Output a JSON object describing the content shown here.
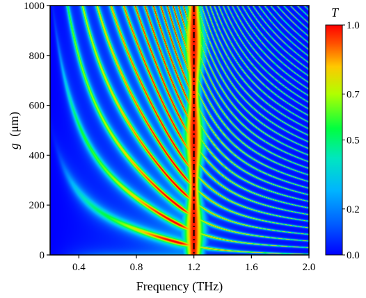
{
  "chart_data": {
    "type": "heatmap",
    "title": "",
    "xlabel": "Frequency (THz)",
    "ylabel_symbol": "g",
    "ylabel_unit": "(μm)",
    "xlim": [
      0.2,
      2.0
    ],
    "ylim": [
      0,
      1000
    ],
    "x_ticks": [
      "0.4",
      "0.8",
      "1.2",
      "1.6",
      "2.0"
    ],
    "x_tick_values": [
      0.4,
      0.8,
      1.2,
      1.6,
      2.0
    ],
    "y_ticks": [
      "0",
      "200",
      "400",
      "600",
      "800",
      "1000"
    ],
    "y_tick_values": [
      0,
      200,
      400,
      600,
      800,
      1000
    ],
    "colorbar": {
      "label": "T",
      "range": [
        0.0,
        1.0
      ],
      "ticks": [
        "0.0",
        "0.2",
        "0.5",
        "0.7",
        "1.0"
      ],
      "tick_values": [
        0.0,
        0.2,
        0.5,
        0.7,
        1.0
      ],
      "colormap": [
        "#0000ff",
        "#0080ff",
        "#00c8ff",
        "#00ff80",
        "#80ff00",
        "#ffff00",
        "#ff8000",
        "#ff0000"
      ]
    },
    "reference_line": {
      "x": 1.2,
      "style": "dash-dot",
      "color": "#000000"
    },
    "description_model": {
      "central_band_center_THz": 1.2,
      "fabry_perot_branches": "curved transmission branches converging toward the center frequency as g increases"
    }
  }
}
